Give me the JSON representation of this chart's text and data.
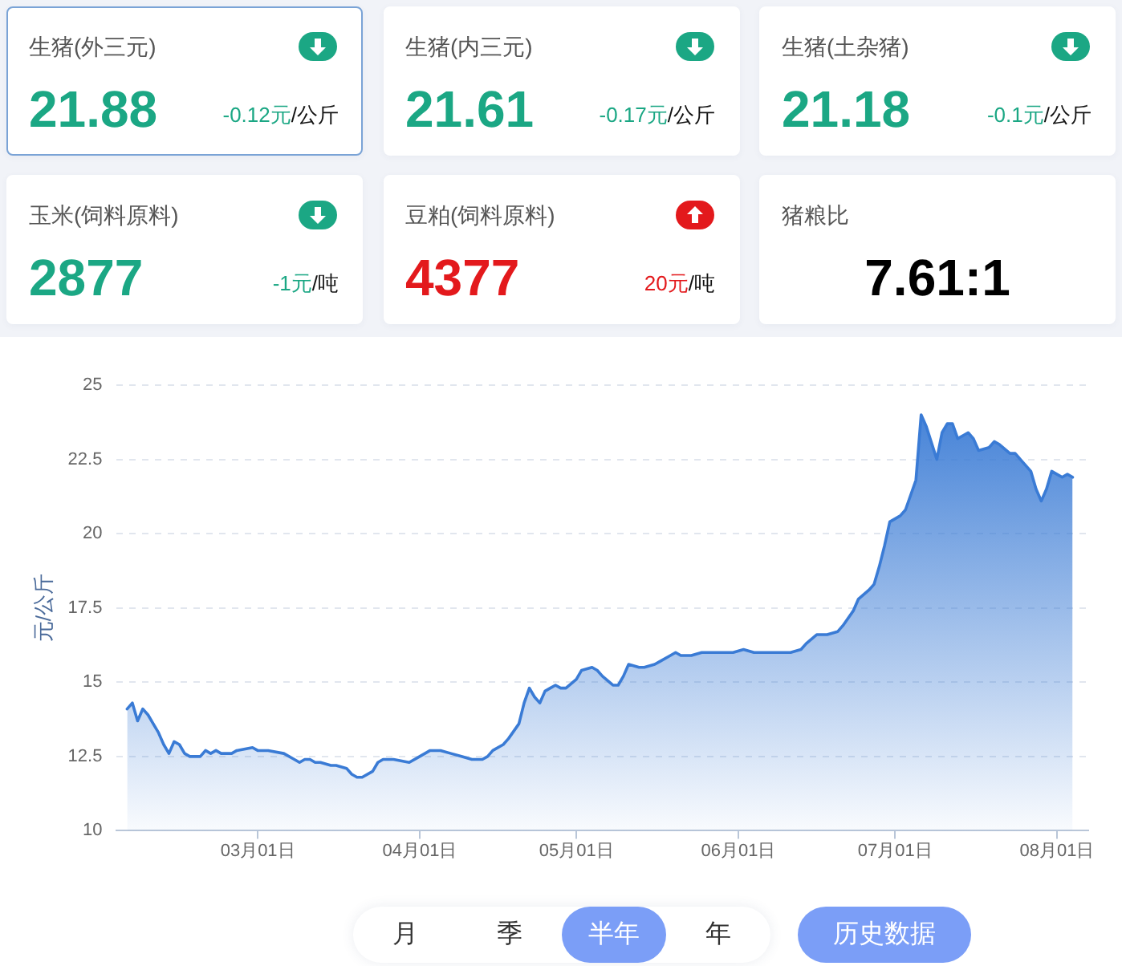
{
  "chart_data": [
    {
      "type": "other",
      "categories": [
        "生猪(外三元)"
      ],
      "series": [
        {
          "values": [
            21.88
          ],
          "value_labels": [
            "21.88"
          ]
        },
        {
          "values": [
            -0.12
          ],
          "value_labels": [
            "-0.12元/公斤"
          ]
        }
      ]
    },
    {
      "type": "other",
      "categories": [
        "生猪(内三元)"
      ],
      "series": [
        {
          "values": [
            21.61
          ],
          "value_labels": [
            "21.61"
          ]
        },
        {
          "values": [
            -0.17
          ],
          "value_labels": [
            "-0.17元/公斤"
          ]
        }
      ]
    },
    {
      "type": "other",
      "categories": [
        "生猪(土杂猪)"
      ],
      "series": [
        {
          "values": [
            21.18
          ],
          "value_labels": [
            "21.18"
          ]
        },
        {
          "values": [
            -0.1
          ],
          "value_labels": [
            "-0.1元/公斤"
          ]
        }
      ]
    },
    {
      "type": "other",
      "categories": [
        "玉米(饲料原料)"
      ],
      "series": [
        {
          "values": [
            2877
          ],
          "value_labels": [
            "2877"
          ]
        },
        {
          "values": [
            -1
          ],
          "value_labels": [
            "-1元/吨"
          ]
        }
      ]
    },
    {
      "type": "other",
      "categories": [
        "豆粕(饲料原料)"
      ],
      "series": [
        {
          "values": [
            4377
          ],
          "value_labels": [
            "4377"
          ]
        },
        {
          "values": [
            20
          ],
          "value_labels": [
            "20元/吨"
          ]
        }
      ]
    },
    {
      "type": "other",
      "categories": [
        "猪粮比"
      ],
      "series": [
        {
          "values": [
            7.61
          ],
          "value_labels": [
            "7.61:1"
          ]
        }
      ]
    },
    {
      "type": "area",
      "ylabel": "元/公斤",
      "grid": "y",
      "marker": "none",
      "line_style": "solid",
      "xlim": [
        "--02-02",
        "--08-07"
      ],
      "xticks": [
        {
          "value": "--03-01",
          "label": "03月01日"
        },
        {
          "value": "--04-01",
          "label": "04月01日"
        },
        {
          "value": "--05-01",
          "label": "05月01日"
        },
        {
          "value": "--06-01",
          "label": "06月01日"
        },
        {
          "value": "--07-01",
          "label": "07月01日"
        },
        {
          "value": "--08-01",
          "label": "08月01日"
        }
      ],
      "ylim": [
        10,
        25
      ],
      "yticks": [
        10,
        12.5,
        15,
        17.5,
        20,
        22.5,
        25
      ],
      "x": [
        "--02-04",
        "--02-05",
        "--02-06",
        "--02-07",
        "--02-08",
        "--02-09",
        "--02-10",
        "--02-11",
        "--02-12",
        "--02-13",
        "--02-14",
        "--02-15",
        "--02-16",
        "--02-17",
        "--02-18",
        "--02-19",
        "--02-20",
        "--02-21",
        "--02-22",
        "--02-24",
        "--02-25",
        "--02-28",
        "--03-01",
        "--03-03",
        "--03-06",
        "--03-08",
        "--03-09",
        "--03-10",
        "--03-11",
        "--03-12",
        "--03-13",
        "--03-15",
        "--03-16",
        "--03-18",
        "--03-19",
        "--03-20",
        "--03-21",
        "--03-23",
        "--03-24",
        "--03-25",
        "--03-27",
        "--03-30",
        "--04-01",
        "--04-03",
        "--04-05",
        "--04-07",
        "--04-09",
        "--04-11",
        "--04-13",
        "--04-14",
        "--04-15",
        "--04-17",
        "--04-18",
        "--04-20",
        "--04-21",
        "--04-22",
        "--04-23",
        "--04-24",
        "--04-25",
        "--04-26",
        "--04-27",
        "--04-28",
        "--04-29",
        "--05-01",
        "--05-02",
        "--05-04",
        "--05-05",
        "--05-06",
        "--05-08",
        "--05-09",
        "--05-10",
        "--05-11",
        "--05-13",
        "--05-14",
        "--05-16",
        "--05-17",
        "--05-19",
        "--05-20",
        "--05-21",
        "--05-23",
        "--05-25",
        "--05-28",
        "--05-29",
        "--05-31",
        "--06-02",
        "--06-04",
        "--06-06",
        "--06-09",
        "--06-11",
        "--06-13",
        "--06-14",
        "--06-16",
        "--06-18",
        "--06-20",
        "--06-21",
        "--06-23",
        "--06-24",
        "--06-26",
        "--06-27",
        "--06-28",
        "--06-29",
        "--06-30",
        "--07-02",
        "--07-03",
        "--07-05",
        "--07-06",
        "--07-07",
        "--07-09",
        "--07-10",
        "--07-11",
        "--07-12",
        "--07-13",
        "--07-14",
        "--07-15",
        "--07-16",
        "--07-17",
        "--07-19",
        "--07-20",
        "--07-21",
        "--07-23",
        "--07-24",
        "--07-25",
        "--07-27",
        "--07-28",
        "--07-29",
        "--07-30",
        "--07-31",
        "--08-01",
        "--08-02",
        "--08-03",
        "--08-04"
      ],
      "series": [
        {
          "color": "#3a7bd5",
          "values": [
            14.1,
            14.3,
            13.7,
            14.1,
            13.9,
            13.6,
            13.3,
            12.9,
            12.6,
            13.0,
            12.9,
            12.6,
            12.5,
            12.5,
            12.5,
            12.7,
            12.6,
            12.7,
            12.6,
            12.6,
            12.7,
            12.8,
            12.7,
            12.7,
            12.6,
            12.4,
            12.3,
            12.4,
            12.4,
            12.3,
            12.3,
            12.2,
            12.2,
            12.1,
            11.9,
            11.8,
            11.8,
            12.0,
            12.3,
            12.4,
            12.4,
            12.3,
            12.5,
            12.7,
            12.7,
            12.6,
            12.5,
            12.4,
            12.4,
            12.5,
            12.7,
            12.9,
            13.1,
            13.6,
            14.3,
            14.8,
            14.5,
            14.3,
            14.7,
            14.8,
            14.9,
            14.8,
            14.8,
            15.1,
            15.4,
            15.5,
            15.4,
            15.2,
            14.9,
            14.9,
            15.2,
            15.6,
            15.5,
            15.5,
            15.6,
            15.7,
            15.9,
            16.0,
            15.9,
            15.9,
            16.0,
            16.0,
            16.0,
            16.0,
            16.1,
            16.0,
            16.0,
            16.0,
            16.0,
            16.1,
            16.3,
            16.6,
            16.6,
            16.7,
            16.9,
            17.4,
            17.8,
            18.1,
            18.3,
            18.9,
            19.6,
            20.4,
            20.6,
            20.8,
            21.8,
            24.0,
            23.6,
            22.5,
            23.4,
            23.7,
            23.7,
            23.2,
            23.3,
            23.4,
            23.2,
            22.8,
            22.9,
            23.1,
            23.0,
            22.7,
            22.7,
            22.5,
            22.1,
            21.5,
            21.1,
            21.5,
            22.1,
            22.0,
            21.9,
            22.0,
            21.9
          ]
        }
      ],
      "annotations": [
        "月",
        "季",
        "半年",
        "年",
        "历史数据"
      ]
    }
  ]
}
